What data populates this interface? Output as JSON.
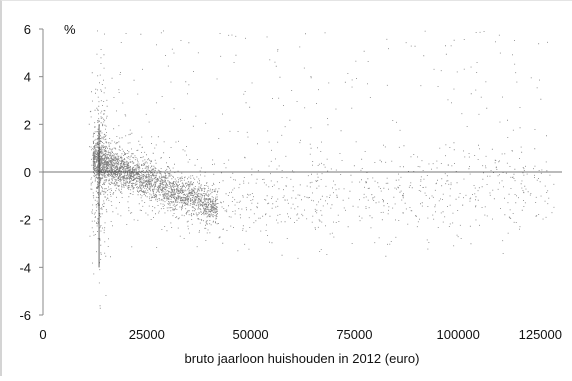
{
  "chart_data": {
    "type": "scatter",
    "title": "",
    "unit_label": "%",
    "xlabel": "bruto jaarloon huishouden in 2012 (euro)",
    "ylabel": "",
    "xlim": [
      0,
      125000
    ],
    "ylim": [
      -6,
      6
    ],
    "x_ticks": [
      0,
      25000,
      50000,
      75000,
      100000,
      125000
    ],
    "x_tick_labels": [
      "0",
      "25000",
      "50000",
      "75000",
      "100000",
      "125000"
    ],
    "y_ticks": [
      -6,
      -4,
      -2,
      0,
      2,
      4,
      6
    ],
    "y_tick_labels": [
      "-6",
      "-4",
      "-2",
      "0",
      "2",
      "4",
      "6"
    ],
    "grid": false,
    "legend": "none",
    "marker_color": "#1a1a1a",
    "reference_line": {
      "x": 13500,
      "y_range": [
        -4,
        2
      ]
    },
    "series": [
      {
        "points_description": "dense cloud of roughly 7000 households",
        "approx_point_count": 7000
      }
    ]
  }
}
